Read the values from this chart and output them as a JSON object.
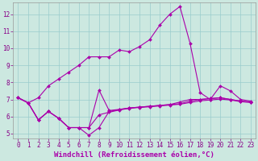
{
  "xlabel": "Windchill (Refroidissement éolien,°C)",
  "bg_color": "#cce8e0",
  "line_color": "#aa00aa",
  "grid_color": "#99cccc",
  "xlim": [
    -0.5,
    23.5
  ],
  "ylim": [
    4.7,
    12.7
  ],
  "yticks": [
    5,
    6,
    7,
    8,
    9,
    10,
    11,
    12
  ],
  "xticks": [
    0,
    1,
    2,
    3,
    4,
    5,
    6,
    7,
    8,
    9,
    10,
    11,
    12,
    13,
    14,
    15,
    16,
    17,
    18,
    19,
    20,
    21,
    22,
    23
  ],
  "series": [
    [
      7.1,
      6.8,
      7.1,
      7.8,
      8.2,
      8.6,
      9.0,
      9.5,
      9.5,
      9.5,
      9.9,
      9.8,
      10.1,
      10.5,
      11.35,
      12.0,
      12.45,
      10.3,
      7.4,
      7.0,
      7.8,
      7.5,
      7.0,
      6.9
    ],
    [
      7.1,
      6.8,
      5.8,
      6.3,
      5.9,
      5.35,
      5.35,
      4.9,
      5.35,
      6.3,
      6.4,
      6.5,
      6.55,
      6.6,
      6.65,
      6.7,
      6.85,
      7.0,
      7.0,
      7.05,
      7.1,
      7.0,
      6.9,
      6.85
    ],
    [
      7.1,
      6.8,
      5.8,
      6.3,
      5.9,
      5.35,
      5.35,
      5.35,
      7.55,
      6.35,
      6.42,
      6.5,
      6.55,
      6.6,
      6.65,
      6.7,
      6.75,
      6.9,
      7.0,
      7.05,
      7.1,
      7.0,
      6.9,
      6.85
    ],
    [
      7.1,
      6.8,
      5.8,
      6.3,
      5.9,
      5.35,
      5.35,
      5.35,
      6.1,
      6.25,
      6.38,
      6.48,
      6.53,
      6.57,
      6.62,
      6.67,
      6.72,
      6.82,
      6.92,
      6.97,
      7.02,
      6.97,
      6.87,
      6.82
    ]
  ],
  "marker": "D",
  "markersize": 2.0,
  "linewidth": 0.8,
  "xlabel_fontsize": 6.5,
  "tick_fontsize": 5.5,
  "tick_color": "#880088"
}
